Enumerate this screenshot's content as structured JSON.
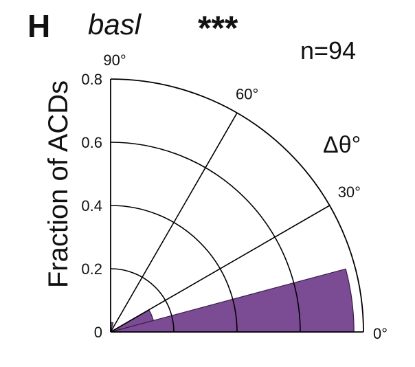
{
  "panel_label": "H",
  "gene": "basl",
  "significance": "***",
  "sample_size": "n=94",
  "colors": {
    "wedge": "#7b4b94",
    "wedge_edge": "#3a1f4a",
    "grid": "#000000"
  },
  "chart_data": {
    "type": "polar-histogram",
    "ylabel": "Fraction of ACDs",
    "angle_label": "Δθ°",
    "rlim": [
      0,
      0.8
    ],
    "radial_ticks": [
      {
        "value": 0,
        "label": "0"
      },
      {
        "value": 0.2,
        "label": "0.2"
      },
      {
        "value": 0.4,
        "label": "0.4"
      },
      {
        "value": 0.6,
        "label": "0.6"
      },
      {
        "value": 0.8,
        "label": "0.8"
      }
    ],
    "angle_ticks": [
      {
        "value": 0,
        "label": "0°"
      },
      {
        "value": 30,
        "label": "30°"
      },
      {
        "value": 60,
        "label": "60°"
      },
      {
        "value": 90,
        "label": "90°"
      }
    ],
    "bins": [
      {
        "start": 0,
        "end": 15,
        "value": 0.77
      },
      {
        "start": 15,
        "end": 30,
        "value": 0.14
      },
      {
        "start": 30,
        "end": 45,
        "value": 0.0
      },
      {
        "start": 45,
        "end": 60,
        "value": 0.0
      },
      {
        "start": 60,
        "end": 75,
        "value": 0.0
      },
      {
        "start": 75,
        "end": 90,
        "value": 0.03
      }
    ],
    "grid": true
  }
}
